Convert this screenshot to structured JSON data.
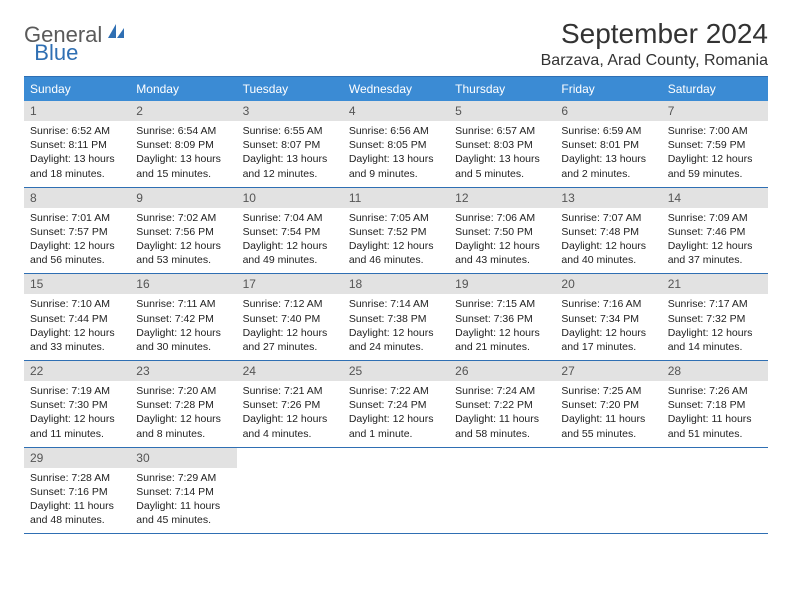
{
  "logo": {
    "part1": "General",
    "part2": "Blue"
  },
  "title": "September 2024",
  "location": "Barzava, Arad County, Romania",
  "header_bg": "#3b8bd4",
  "header_fg": "#ffffff",
  "border_color": "#2f6fb3",
  "daynum_bg": "#e2e2e2",
  "weekdays": [
    "Sunday",
    "Monday",
    "Tuesday",
    "Wednesday",
    "Thursday",
    "Friday",
    "Saturday"
  ],
  "days": [
    {
      "n": "1",
      "sunrise": "6:52 AM",
      "sunset": "8:11 PM",
      "daylight": "13 hours and 18 minutes."
    },
    {
      "n": "2",
      "sunrise": "6:54 AM",
      "sunset": "8:09 PM",
      "daylight": "13 hours and 15 minutes."
    },
    {
      "n": "3",
      "sunrise": "6:55 AM",
      "sunset": "8:07 PM",
      "daylight": "13 hours and 12 minutes."
    },
    {
      "n": "4",
      "sunrise": "6:56 AM",
      "sunset": "8:05 PM",
      "daylight": "13 hours and 9 minutes."
    },
    {
      "n": "5",
      "sunrise": "6:57 AM",
      "sunset": "8:03 PM",
      "daylight": "13 hours and 5 minutes."
    },
    {
      "n": "6",
      "sunrise": "6:59 AM",
      "sunset": "8:01 PM",
      "daylight": "13 hours and 2 minutes."
    },
    {
      "n": "7",
      "sunrise": "7:00 AM",
      "sunset": "7:59 PM",
      "daylight": "12 hours and 59 minutes."
    },
    {
      "n": "8",
      "sunrise": "7:01 AM",
      "sunset": "7:57 PM",
      "daylight": "12 hours and 56 minutes."
    },
    {
      "n": "9",
      "sunrise": "7:02 AM",
      "sunset": "7:56 PM",
      "daylight": "12 hours and 53 minutes."
    },
    {
      "n": "10",
      "sunrise": "7:04 AM",
      "sunset": "7:54 PM",
      "daylight": "12 hours and 49 minutes."
    },
    {
      "n": "11",
      "sunrise": "7:05 AM",
      "sunset": "7:52 PM",
      "daylight": "12 hours and 46 minutes."
    },
    {
      "n": "12",
      "sunrise": "7:06 AM",
      "sunset": "7:50 PM",
      "daylight": "12 hours and 43 minutes."
    },
    {
      "n": "13",
      "sunrise": "7:07 AM",
      "sunset": "7:48 PM",
      "daylight": "12 hours and 40 minutes."
    },
    {
      "n": "14",
      "sunrise": "7:09 AM",
      "sunset": "7:46 PM",
      "daylight": "12 hours and 37 minutes."
    },
    {
      "n": "15",
      "sunrise": "7:10 AM",
      "sunset": "7:44 PM",
      "daylight": "12 hours and 33 minutes."
    },
    {
      "n": "16",
      "sunrise": "7:11 AM",
      "sunset": "7:42 PM",
      "daylight": "12 hours and 30 minutes."
    },
    {
      "n": "17",
      "sunrise": "7:12 AM",
      "sunset": "7:40 PM",
      "daylight": "12 hours and 27 minutes."
    },
    {
      "n": "18",
      "sunrise": "7:14 AM",
      "sunset": "7:38 PM",
      "daylight": "12 hours and 24 minutes."
    },
    {
      "n": "19",
      "sunrise": "7:15 AM",
      "sunset": "7:36 PM",
      "daylight": "12 hours and 21 minutes."
    },
    {
      "n": "20",
      "sunrise": "7:16 AM",
      "sunset": "7:34 PM",
      "daylight": "12 hours and 17 minutes."
    },
    {
      "n": "21",
      "sunrise": "7:17 AM",
      "sunset": "7:32 PM",
      "daylight": "12 hours and 14 minutes."
    },
    {
      "n": "22",
      "sunrise": "7:19 AM",
      "sunset": "7:30 PM",
      "daylight": "12 hours and 11 minutes."
    },
    {
      "n": "23",
      "sunrise": "7:20 AM",
      "sunset": "7:28 PM",
      "daylight": "12 hours and 8 minutes."
    },
    {
      "n": "24",
      "sunrise": "7:21 AM",
      "sunset": "7:26 PM",
      "daylight": "12 hours and 4 minutes."
    },
    {
      "n": "25",
      "sunrise": "7:22 AM",
      "sunset": "7:24 PM",
      "daylight": "12 hours and 1 minute."
    },
    {
      "n": "26",
      "sunrise": "7:24 AM",
      "sunset": "7:22 PM",
      "daylight": "11 hours and 58 minutes."
    },
    {
      "n": "27",
      "sunrise": "7:25 AM",
      "sunset": "7:20 PM",
      "daylight": "11 hours and 55 minutes."
    },
    {
      "n": "28",
      "sunrise": "7:26 AM",
      "sunset": "7:18 PM",
      "daylight": "11 hours and 51 minutes."
    },
    {
      "n": "29",
      "sunrise": "7:28 AM",
      "sunset": "7:16 PM",
      "daylight": "11 hours and 48 minutes."
    },
    {
      "n": "30",
      "sunrise": "7:29 AM",
      "sunset": "7:14 PM",
      "daylight": "11 hours and 45 minutes."
    }
  ],
  "labels": {
    "sunrise": "Sunrise: ",
    "sunset": "Sunset: ",
    "daylight": "Daylight: "
  }
}
